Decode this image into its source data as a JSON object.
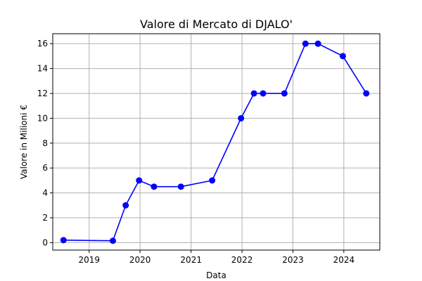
{
  "chart_data": {
    "type": "line",
    "title": "Valore di Mercato di DJALO'",
    "xlabel": "Data",
    "ylabel": "Valore in Milioni €",
    "x_axis_type": "date",
    "xlim": [
      "2018-04-15",
      "2024-09-15"
    ],
    "ylim": [
      -0.6,
      16.8
    ],
    "x_ticks": [
      {
        "date": "2019-01-01",
        "label": "2019"
      },
      {
        "date": "2020-01-01",
        "label": "2020"
      },
      {
        "date": "2021-01-01",
        "label": "2021"
      },
      {
        "date": "2022-01-01",
        "label": "2022"
      },
      {
        "date": "2023-01-01",
        "label": "2023"
      },
      {
        "date": "2024-01-01",
        "label": "2024"
      }
    ],
    "y_ticks": [
      0,
      2,
      4,
      6,
      8,
      10,
      12,
      14,
      16
    ],
    "grid": true,
    "legend": "none",
    "series": [
      {
        "color": "#0000ff",
        "marker": "circle",
        "points": [
          {
            "x": "2018-07-01",
            "y": 0.2
          },
          {
            "x": "2019-06-20",
            "y": 0.15
          },
          {
            "x": "2019-09-20",
            "y": 3
          },
          {
            "x": "2019-12-25",
            "y": 5
          },
          {
            "x": "2020-04-10",
            "y": 4.5
          },
          {
            "x": "2020-10-20",
            "y": 4.5
          },
          {
            "x": "2021-06-01",
            "y": 5
          },
          {
            "x": "2021-12-25",
            "y": 10
          },
          {
            "x": "2022-03-28",
            "y": 12
          },
          {
            "x": "2022-06-01",
            "y": 12
          },
          {
            "x": "2022-11-01",
            "y": 12
          },
          {
            "x": "2023-04-01",
            "y": 16
          },
          {
            "x": "2023-06-30",
            "y": 16
          },
          {
            "x": "2023-12-25",
            "y": 15
          },
          {
            "x": "2024-06-10",
            "y": 12
          }
        ]
      }
    ]
  }
}
